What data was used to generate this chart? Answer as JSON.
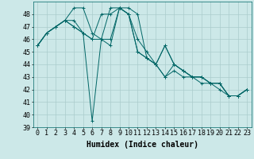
{
  "xlabel": "Humidex (Indice chaleur)",
  "bg_color": "#cce8e8",
  "grid_color": "#aacccc",
  "line_color": "#006666",
  "xlim": [
    -0.5,
    23.5
  ],
  "ylim": [
    39,
    49
  ],
  "xticks": [
    0,
    1,
    2,
    3,
    4,
    5,
    6,
    7,
    8,
    9,
    10,
    11,
    12,
    13,
    14,
    15,
    16,
    17,
    18,
    19,
    20,
    21,
    22,
    23
  ],
  "yticks": [
    39,
    40,
    41,
    42,
    43,
    44,
    45,
    46,
    47,
    48
  ],
  "series": [
    [
      45.5,
      46.5,
      47.0,
      47.5,
      47.0,
      46.5,
      46.0,
      46.0,
      46.0,
      48.5,
      48.5,
      48.0,
      44.5,
      44.0,
      45.5,
      44.0,
      43.5,
      43.0,
      43.0,
      42.5,
      42.5,
      41.5,
      41.5,
      42.0
    ],
    [
      45.5,
      46.5,
      47.0,
      47.5,
      47.0,
      46.5,
      46.0,
      48.0,
      48.0,
      48.5,
      48.0,
      46.0,
      45.0,
      44.0,
      43.0,
      43.5,
      43.0,
      43.0,
      42.5,
      42.5,
      42.0,
      41.5,
      41.5,
      42.0
    ],
    [
      45.5,
      46.5,
      47.0,
      47.5,
      47.5,
      46.5,
      39.5,
      46.0,
      48.5,
      48.5,
      48.0,
      45.0,
      44.5,
      44.0,
      45.5,
      44.0,
      43.5,
      43.0,
      43.0,
      42.5,
      42.5,
      41.5,
      41.5,
      42.0
    ],
    [
      45.5,
      46.5,
      47.0,
      47.5,
      48.5,
      48.5,
      46.5,
      46.0,
      45.5,
      48.5,
      48.0,
      45.0,
      44.5,
      44.0,
      43.0,
      44.0,
      43.5,
      43.0,
      43.0,
      42.5,
      42.5,
      41.5,
      41.5,
      42.0
    ]
  ],
  "xlabel_fontsize": 7,
  "tick_fontsize": 6
}
